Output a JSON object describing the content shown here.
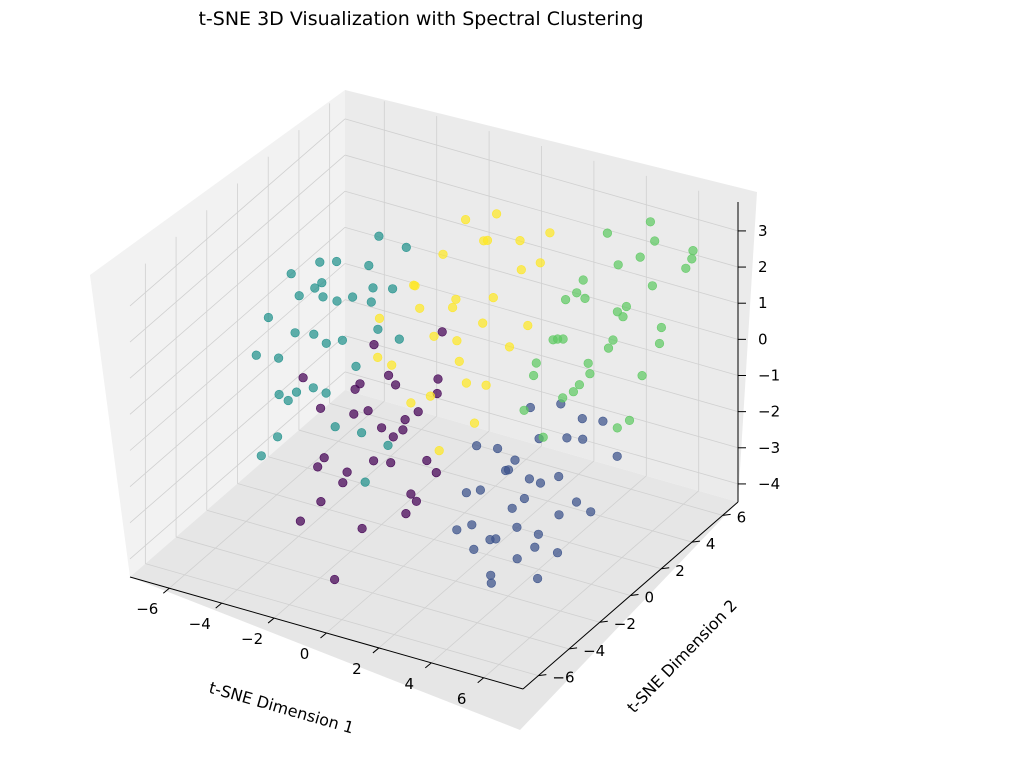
{
  "chart_data": {
    "type": "scatter",
    "projection": "3d",
    "title": "t-SNE 3D Visualization with Spectral Clustering",
    "xlabel": "t-SNE Dimension 1",
    "ylabel": "t-SNE Dimension 2",
    "zlabel": "",
    "xlim": [
      -7.5,
      7.5
    ],
    "ylim": [
      -7,
      7
    ],
    "zlim": [
      -4.5,
      3.8
    ],
    "xticks": [
      "−6",
      "−4",
      "−2",
      "0",
      "2",
      "4",
      "6"
    ],
    "yticks": [
      "−6",
      "−4",
      "−2",
      "0",
      "2",
      "4",
      "6"
    ],
    "zticks": [
      "−4",
      "−3",
      "−2",
      "−1",
      "0",
      "1",
      "2",
      "3"
    ],
    "xtick_values": [
      -6,
      -4,
      -2,
      0,
      2,
      4,
      6
    ],
    "ytick_values": [
      -6,
      -4,
      -2,
      0,
      2,
      4,
      6
    ],
    "ztick_values": [
      -4,
      -3,
      -2,
      -1,
      0,
      1,
      2,
      3
    ],
    "grid": true,
    "legend": "none",
    "series": [
      {
        "color": "#440154",
        "x": [
          -1.8,
          -1.2,
          -0.6,
          -0.2,
          0.3,
          0.8,
          1.3,
          1.8,
          -2.1,
          -1.5,
          -0.9,
          -0.3,
          0.2,
          0.7,
          1.1,
          1.6,
          -1.0,
          -0.5,
          0.0,
          0.5,
          1.0,
          1.5,
          -1.7,
          -0.8,
          0.1,
          0.9,
          -0.4,
          0.4,
          -1.3,
          1.2,
          -2.3,
          -0.1
        ],
        "y": [
          -4.5,
          -5.1,
          -4.2,
          -5.6,
          -4.8,
          -5.3,
          -4.1,
          -4.9,
          -3.8,
          -3.1,
          -3.6,
          -2.9,
          -3.3,
          -2.7,
          -3.9,
          -3.2,
          -2.2,
          -1.8,
          -2.5,
          -2.0,
          -1.5,
          -2.3,
          -5.8,
          -6.0,
          -1.2,
          -1.0,
          -4.0,
          -3.5,
          -2.6,
          -1.9,
          -4.6,
          -6.3
        ],
        "z": [
          -1.2,
          -0.6,
          0.4,
          -0.9,
          0.9,
          -0.2,
          0.6,
          -1.6,
          0.1,
          -1.8,
          0.8,
          -0.4,
          1.3,
          -2.1,
          0.2,
          -0.8,
          1.5,
          -1.1,
          0.7,
          -2.6,
          0.3,
          1.1,
          -2.2,
          -1.4,
          -0.5,
          1.8,
          -2.8,
          -1.0,
          0.5,
          -1.7,
          1.2,
          -3.3
        ]
      },
      {
        "color": "#3b528b",
        "x": [
          4.2,
          4.8,
          5.3,
          5.9,
          6.4,
          3.9,
          4.5,
          5.1,
          5.6,
          6.2,
          6.8,
          4.0,
          4.6,
          5.2,
          5.8,
          6.3,
          3.6,
          4.3,
          4.9,
          5.5,
          6.1,
          6.7,
          3.8,
          4.4,
          5.0,
          5.7,
          6.5,
          4.7,
          5.4,
          6.0,
          3.5,
          4.1,
          5.3,
          6.6,
          4.9,
          5.8
        ],
        "y": [
          -2.5,
          -3.1,
          -2.2,
          -3.5,
          -2.8,
          -1.8,
          -1.4,
          -1.9,
          -0.9,
          -1.3,
          -0.6,
          -3.8,
          -4.2,
          -3.6,
          -4.5,
          -4.0,
          -2.0,
          -0.4,
          -0.1,
          0.3,
          -0.2,
          0.5,
          -5.0,
          -5.4,
          -4.8,
          -5.7,
          -5.2,
          -2.6,
          -3.0,
          -2.1,
          -3.2,
          -4.4,
          -1.0,
          -1.6,
          -5.9,
          -6.2
        ],
        "z": [
          -0.8,
          -1.5,
          0.2,
          -2.2,
          -0.4,
          -1.1,
          0.6,
          -2.6,
          -0.2,
          -1.7,
          0.4,
          -0.9,
          -2.0,
          0.1,
          -1.3,
          -2.8,
          -0.5,
          -1.9,
          0.3,
          -0.7,
          -2.4,
          -1.0,
          -1.6,
          -0.3,
          -2.9,
          -1.2,
          -0.1,
          -3.1,
          -0.6,
          -1.8,
          0.0,
          -2.3,
          -3.4,
          0.8,
          -0.9,
          -2.0
        ]
      },
      {
        "color": "#21918c",
        "x": [
          -7.2,
          -6.8,
          -6.4,
          -6.1,
          -5.7,
          -5.3,
          -4.9,
          -4.6,
          -4.2,
          -3.8,
          -3.4,
          -6.9,
          -6.5,
          -6.0,
          -5.6,
          -5.1,
          -4.7,
          -4.3,
          -3.9,
          -3.5,
          -7.0,
          -6.6,
          -6.2,
          -5.8,
          -5.4,
          -5.0,
          -4.5,
          -4.1,
          -3.7,
          -3.2,
          -6.3,
          -5.5,
          -4.8,
          -4.0,
          -2.8,
          -2.4
        ],
        "y": [
          1.5,
          2.3,
          0.8,
          3.1,
          1.9,
          2.7,
          0.5,
          3.6,
          1.2,
          2.4,
          4.0,
          0.2,
          1.0,
          2.8,
          0.6,
          3.4,
          1.7,
          0.9,
          3.0,
          2.0,
          2.9,
          3.5,
          1.8,
          0.4,
          2.2,
          1.3,
          2.6,
          4.3,
          1.6,
          3.2,
          -0.5,
          -0.8,
          4.6,
          -0.2,
          0.3,
          1.1
        ],
        "z": [
          -0.4,
          0.6,
          -1.1,
          0.2,
          -0.7,
          1.1,
          -1.5,
          0.8,
          -0.3,
          0.4,
          1.4,
          -0.9,
          -2.2,
          0.9,
          -1.8,
          -0.1,
          0.5,
          -2.6,
          -0.6,
          1.0,
          -1.3,
          -0.2,
          0.3,
          -2.0,
          -1.0,
          0.7,
          -1.6,
          0.0,
          -2.9,
          -0.8,
          -3.3,
          -2.5,
          1.2,
          -1.2,
          -3.6,
          -2.8
        ]
      },
      {
        "color": "#5ec962",
        "x": [
          2.4,
          3.0,
          3.6,
          4.1,
          4.7,
          5.2,
          5.8,
          2.7,
          3.3,
          3.9,
          4.4,
          5.0,
          5.5,
          6.1,
          2.1,
          2.9,
          3.5,
          4.2,
          4.9,
          5.6,
          6.3,
          2.5,
          3.2,
          3.8,
          4.5,
          5.3,
          6.0,
          6.7,
          3.1,
          4.0,
          4.8,
          5.9,
          6.5,
          2.2,
          3.7
        ],
        "y": [
          5.2,
          4.6,
          5.8,
          5.0,
          6.2,
          5.5,
          6.5,
          3.8,
          4.2,
          3.5,
          4.8,
          4.0,
          5.3,
          4.4,
          2.9,
          3.1,
          2.6,
          2.3,
          3.0,
          2.1,
          2.8,
          1.6,
          1.2,
          1.9,
          1.4,
          1.0,
          1.7,
          1.3,
          6.0,
          6.6,
          5.9,
          6.8,
          5.7,
          4.0,
          0.8
        ],
        "z": [
          0.9,
          1.6,
          0.4,
          2.1,
          1.2,
          2.8,
          1.8,
          0.2,
          1.3,
          -0.4,
          0.8,
          1.5,
          0.1,
          1.0,
          -0.6,
          0.5,
          1.9,
          -0.2,
          0.7,
          1.4,
          0.3,
          -1.0,
          0.6,
          -0.5,
          0.0,
          1.1,
          -0.8,
          -0.3,
          2.4,
          1.7,
          3.1,
          2.2,
          2.5,
          0.0,
          -1.2
        ]
      },
      {
        "color": "#fde725",
        "x": [
          -2.6,
          -2.0,
          -1.4,
          -0.8,
          -0.2,
          0.4,
          1.0,
          -2.3,
          -1.7,
          -1.1,
          -0.5,
          0.1,
          0.7,
          1.3,
          -2.9,
          -2.2,
          -1.6,
          -0.9,
          -0.3,
          0.3,
          0.9,
          -1.9,
          -1.3,
          -0.6,
          0.0,
          0.6,
          1.2,
          -2.5,
          -1.0,
          0.2
        ],
        "y": [
          3.2,
          4.0,
          3.6,
          4.6,
          4.2,
          5.0,
          4.4,
          2.6,
          2.9,
          3.3,
          2.5,
          3.0,
          2.2,
          2.7,
          1.4,
          1.0,
          1.8,
          1.3,
          2.0,
          1.6,
          1.1,
          5.3,
          5.7,
          5.1,
          5.6,
          5.9,
          5.5,
          0.6,
          0.2,
          0.0
        ],
        "z": [
          0.8,
          1.5,
          0.3,
          1.9,
          0.6,
          1.2,
          0.0,
          1.1,
          -0.3,
          0.7,
          -0.6,
          0.4,
          -0.9,
          0.1,
          0.5,
          -0.5,
          0.9,
          -1.2,
          0.2,
          -0.7,
          -1.5,
          2.0,
          1.4,
          2.5,
          1.7,
          1.1,
          2.2,
          -0.2,
          -1.0,
          -2.0
        ]
      }
    ]
  }
}
